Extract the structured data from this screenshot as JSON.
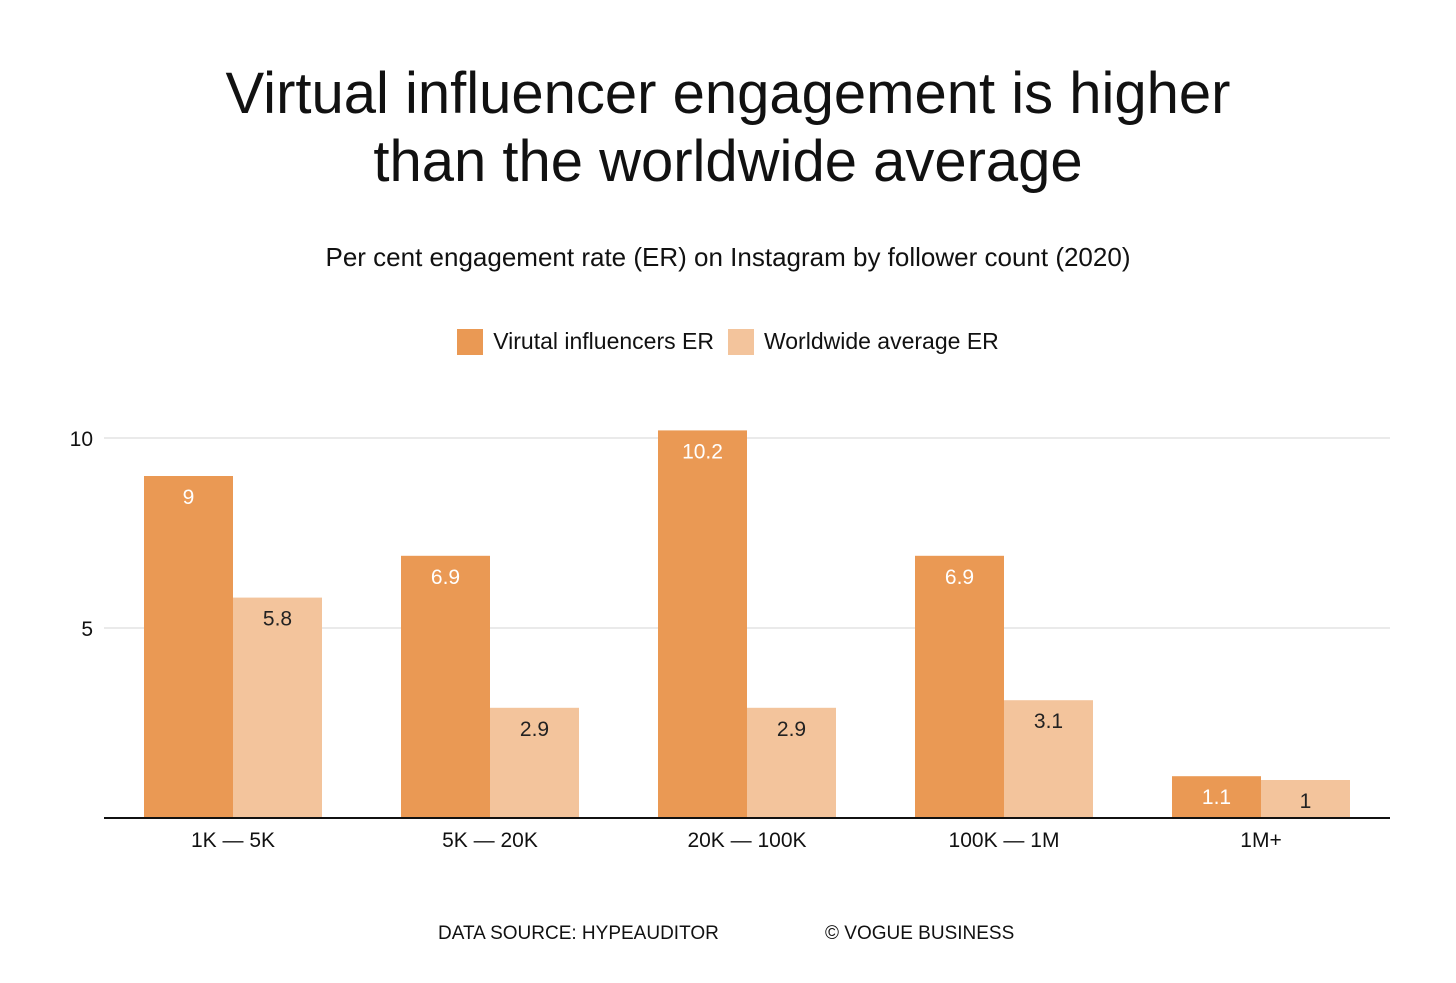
{
  "chart_data": {
    "type": "bar",
    "title": "Virtual influencer engagement is higher than the worldwide average",
    "title_lines": [
      "Virtual influencer engagement is higher",
      "than the worldwide average"
    ],
    "subtitle": "Per cent engagement rate (ER) on Instagram by follower count (2020)",
    "categories": [
      "1K — 5K",
      "5K — 20K",
      "20K — 100K",
      "100K — 1M",
      "1M+"
    ],
    "series": [
      {
        "name": "Virutal influencers ER",
        "color": "#EA9954",
        "label_color": "#FFFFFF",
        "values": [
          9,
          6.9,
          10.2,
          6.9,
          1.1
        ],
        "labels": [
          "9",
          "6.9",
          "10.2",
          "6.9",
          "1.1"
        ]
      },
      {
        "name": "Worldwide average ER",
        "color": "#F3C49C",
        "label_color": "#222222",
        "values": [
          5.8,
          2.9,
          2.9,
          3.1,
          1
        ],
        "labels": [
          "5.8",
          "2.9",
          "2.9",
          "3.1",
          "1"
        ]
      }
    ],
    "yticks": [
      5,
      10
    ],
    "ylim": [
      0,
      10
    ],
    "xlabel": "",
    "ylabel": "",
    "grid": true,
    "legend": "top-center"
  },
  "footer": {
    "source": "DATA SOURCE: HYPEAUDITOR",
    "credit": "© VOGUE BUSINESS"
  },
  "colors": {
    "gridline": "#E3E3E3",
    "axis": "#111111",
    "text": "#111111"
  }
}
